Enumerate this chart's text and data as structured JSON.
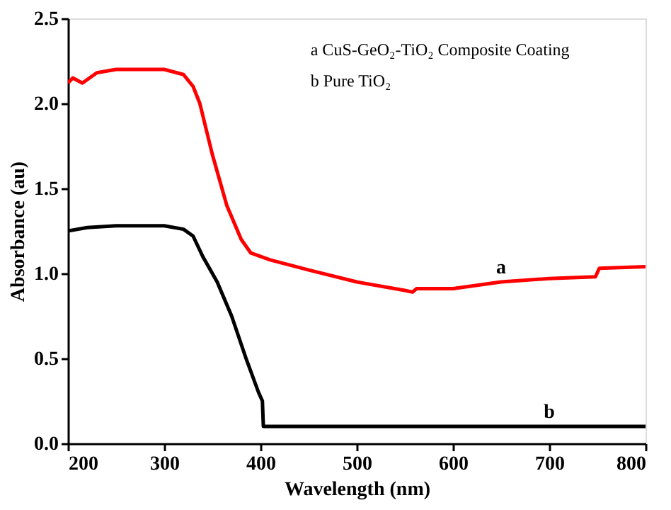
{
  "chart_data": {
    "type": "line",
    "xlabel": "Wavelength (nm)",
    "ylabel": "Absorbance (au)",
    "x": [
      200,
      205,
      215,
      230,
      250,
      300,
      320,
      330,
      337,
      350,
      365,
      380,
      390,
      410,
      450,
      500,
      550,
      558,
      562,
      600,
      650,
      700,
      748,
      752,
      800
    ],
    "series": [
      {
        "name": "a",
        "color": "#ff0000",
        "values": [
          2.12,
          2.15,
          2.12,
          2.18,
          2.2,
          2.2,
          2.17,
          2.1,
          2.0,
          1.7,
          1.4,
          1.2,
          1.12,
          1.08,
          1.02,
          0.95,
          0.9,
          0.89,
          0.91,
          0.91,
          0.95,
          0.97,
          0.98,
          1.03,
          1.04
        ]
      },
      {
        "name": "b",
        "color": "#000000",
        "x": [
          200,
          220,
          250,
          300,
          320,
          330,
          340,
          355,
          370,
          385,
          398,
          402,
          403,
          500,
          600,
          700,
          800
        ],
        "values": [
          1.25,
          1.27,
          1.28,
          1.28,
          1.26,
          1.22,
          1.1,
          0.95,
          0.75,
          0.5,
          0.3,
          0.25,
          0.1,
          0.1,
          0.1,
          0.1,
          0.1
        ]
      }
    ],
    "xlim": [
      200,
      800
    ],
    "ylim": [
      0,
      2.5
    ],
    "xticks": [
      200,
      300,
      400,
      500,
      600,
      700,
      800
    ],
    "yticks": [
      {
        "value": 0,
        "label": "0.0"
      },
      {
        "value": 0.5,
        "label": "0.5"
      },
      {
        "value": 1,
        "label": "1.0"
      },
      {
        "value": 1.5,
        "label": "1.5"
      },
      {
        "value": 2,
        "label": "2.0"
      },
      {
        "value": 2.5,
        "label": "2.5"
      }
    ],
    "annotations": [
      "a  CuS-GeO₂-TiO₂ Composite Coating",
      "b  Pure TiO₂"
    ],
    "grid": false,
    "marker": "none",
    "line_style": "solid"
  }
}
